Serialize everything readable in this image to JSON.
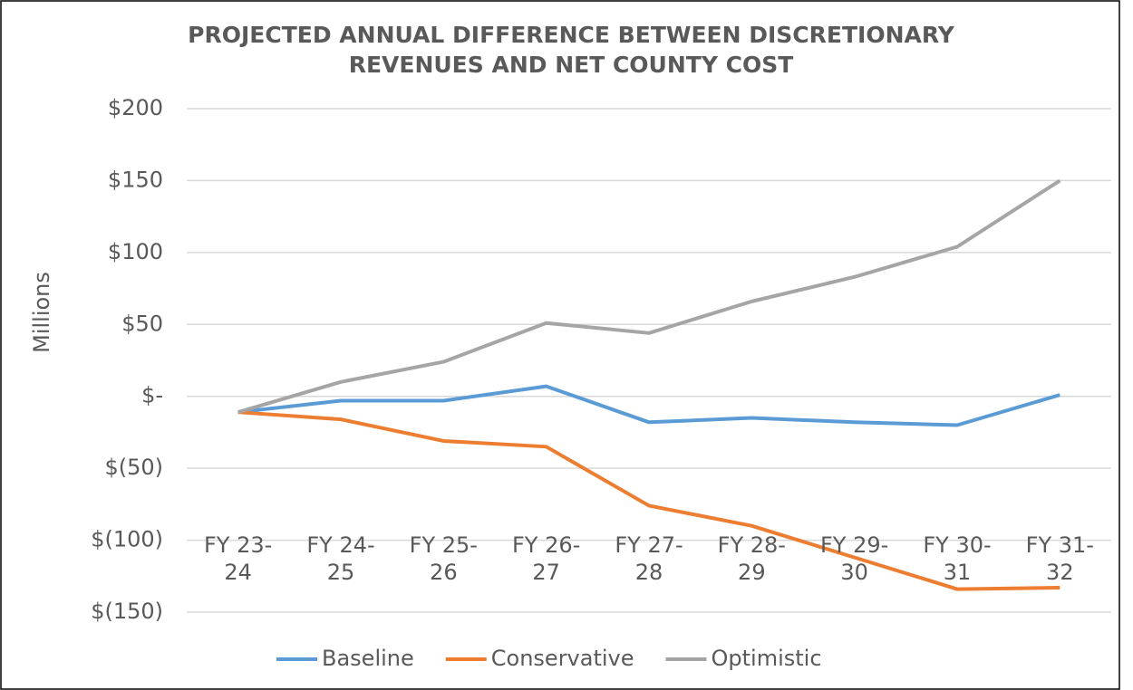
{
  "chart_data": {
    "type": "line",
    "title": "PROJECTED ANNUAL DIFFERENCE BETWEEN DISCRETIONARY",
    "subtitle": "REVENUES AND NET COUNTY COST",
    "ylabel": "Millions",
    "categories": [
      "FY 23-24",
      "FY 24-25",
      "FY 25-26",
      "FY 26-27",
      "FY 27-28",
      "FY 28-29",
      "FY 29-30",
      "FY 30-31",
      "FY 31-32"
    ],
    "series": [
      {
        "name": "Baseline",
        "color": "#5b9bd5",
        "values": [
          -11,
          -3,
          -3,
          7,
          -18,
          -15,
          -18,
          -20,
          1
        ]
      },
      {
        "name": "Conservative",
        "color": "#ed7d31",
        "values": [
          -11,
          -16,
          -31,
          -35,
          -76,
          -90,
          -112,
          -134,
          -133
        ]
      },
      {
        "name": "Optimistic",
        "color": "#a5a5a5",
        "values": [
          -11,
          10,
          24,
          51,
          44,
          66,
          83,
          104,
          150
        ]
      }
    ],
    "ylim": [
      -150,
      200
    ],
    "yticks": [
      {
        "value": -150,
        "label": "$(150)"
      },
      {
        "value": -100,
        "label": "$(100)"
      },
      {
        "value": -50,
        "label": "$(50)"
      },
      {
        "value": 0,
        "label": "$-"
      },
      {
        "value": 50,
        "label": "$50"
      },
      {
        "value": 100,
        "label": "$100"
      },
      {
        "value": 150,
        "label": "$150"
      },
      {
        "value": 200,
        "label": "$200"
      }
    ],
    "grid": true,
    "legend": "bottom"
  }
}
